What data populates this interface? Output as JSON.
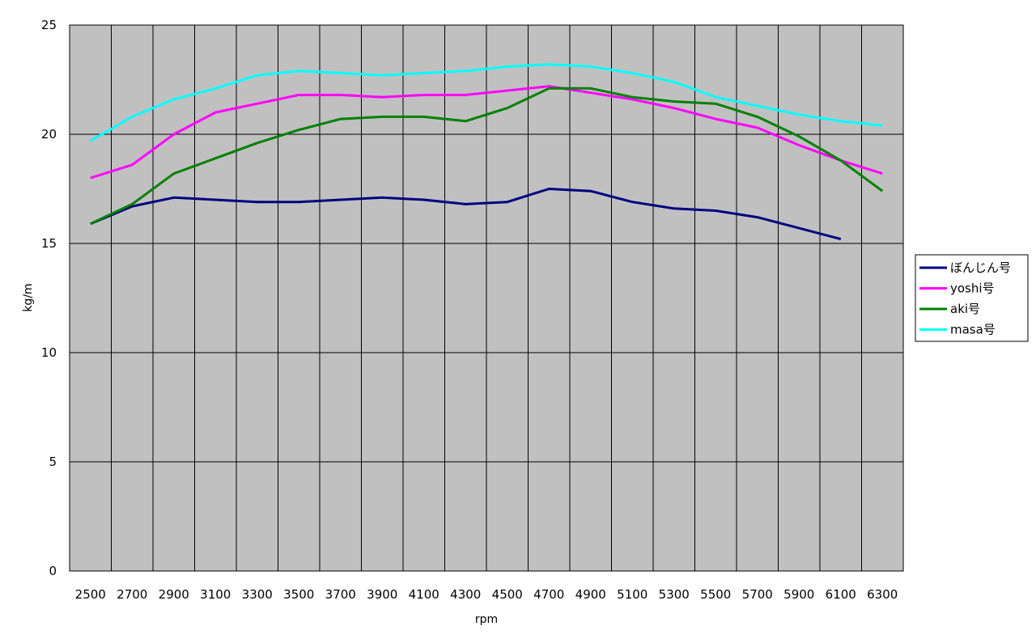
{
  "chart_data": {
    "type": "line",
    "title": "",
    "xlabel": "rpm",
    "ylabel": "kg/m",
    "categories": [
      "2500",
      "2700",
      "2900",
      "3100",
      "3300",
      "3500",
      "3700",
      "3900",
      "4100",
      "4300",
      "4500",
      "4700",
      "4900",
      "5100",
      "5300",
      "5500",
      "5700",
      "5900",
      "6100",
      "6300"
    ],
    "ylim": [
      0,
      25
    ],
    "yticks": [
      0,
      5,
      10,
      15,
      20,
      25
    ],
    "grid": true,
    "legend_position": "right",
    "plot_background": "#c0c0c0",
    "series": [
      {
        "name": "ぼんじん号",
        "color": "#000080",
        "values": [
          15.9,
          16.7,
          17.1,
          17.0,
          16.9,
          16.9,
          17.0,
          17.1,
          17.0,
          16.8,
          16.9,
          17.5,
          17.4,
          16.9,
          16.6,
          16.5,
          16.2,
          15.7,
          15.2,
          null
        ]
      },
      {
        "name": "yoshi号",
        "color": "#ff00ff",
        "values": [
          18.0,
          18.6,
          20.0,
          21.0,
          21.4,
          21.8,
          21.8,
          21.7,
          21.8,
          21.8,
          22.0,
          22.2,
          21.9,
          21.6,
          21.2,
          20.7,
          20.3,
          19.5,
          18.8,
          18.2
        ]
      },
      {
        "name": "aki号",
        "color": "#008000",
        "values": [
          15.9,
          16.8,
          18.2,
          18.9,
          19.6,
          20.2,
          20.7,
          20.8,
          20.8,
          20.6,
          21.2,
          22.1,
          22.1,
          21.7,
          21.5,
          21.4,
          20.8,
          19.9,
          18.8,
          17.4
        ]
      },
      {
        "name": "masa号",
        "color": "#00ffff",
        "values": [
          19.7,
          20.8,
          21.6,
          22.1,
          22.7,
          22.9,
          22.8,
          22.7,
          22.8,
          22.9,
          23.1,
          23.2,
          23.1,
          22.8,
          22.4,
          21.7,
          21.3,
          20.9,
          20.6,
          20.4
        ]
      }
    ]
  }
}
